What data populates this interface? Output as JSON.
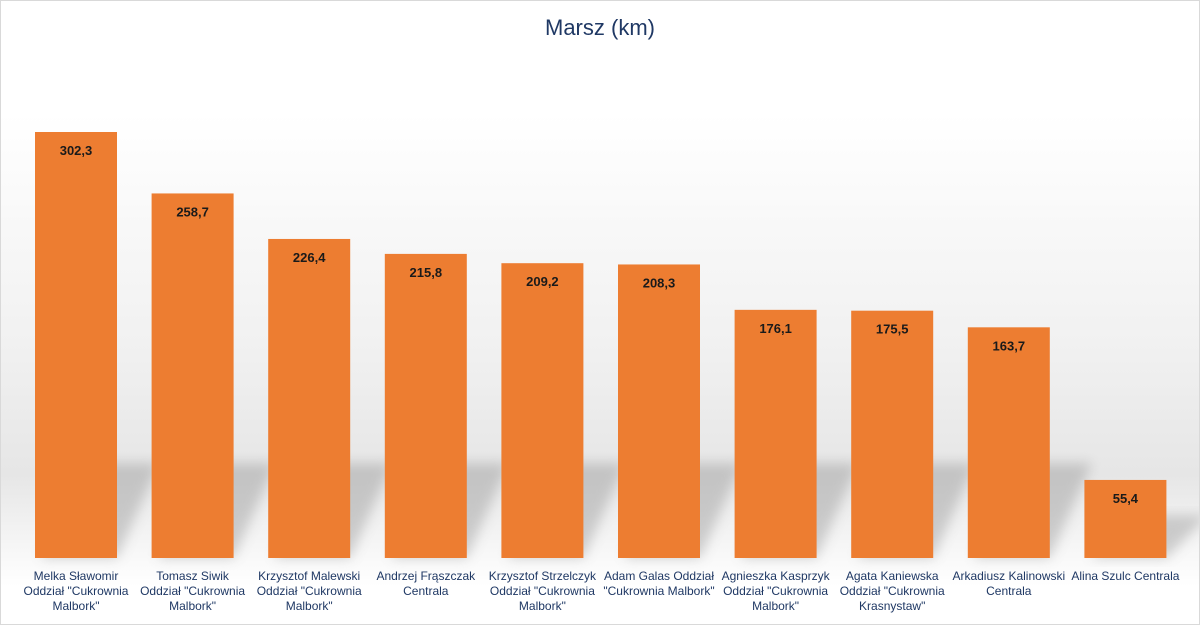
{
  "chart_data": {
    "type": "bar",
    "title": "Marsz (km)",
    "xlabel": "",
    "ylabel": "",
    "ylim": [
      0,
      302.3
    ],
    "grid": false,
    "legend": "none",
    "categories": [
      "Melka Sławomir Oddział \"Cukrownia Malbork\"",
      "Tomasz Siwik Oddział \"Cukrownia Malbork\"",
      "Krzysztof Malewski Oddział \"Cukrownia Malbork\"",
      "Andrzej Frąszczak Centrala",
      "Krzysztof Strzelczyk Oddział \"Cukrownia Malbork\"",
      "Adam Galas Oddział \"Cukrownia Malbork\"",
      "Agnieszka Kasprzyk Oddział \"Cukrownia Malbork\"",
      "Agata Kaniewska Oddział \"Cukrownia Krasnystaw\"",
      "Arkadiusz Kalinowski Centrala",
      "Alina Szulc Centrala"
    ],
    "values": [
      302.3,
      258.7,
      226.4,
      215.8,
      209.2,
      208.3,
      176.1,
      175.5,
      163.7,
      55.4
    ],
    "data_labels": [
      "302,3",
      "258,7",
      "226,4",
      "215,8",
      "209,2",
      "208,3",
      "176,1",
      "175,5",
      "163,7",
      "55,4"
    ],
    "colors": {
      "bar": "#ED7D31",
      "title": "#1F3864",
      "category_text": "#1F3864",
      "value_text": "#1A1A1A"
    }
  }
}
